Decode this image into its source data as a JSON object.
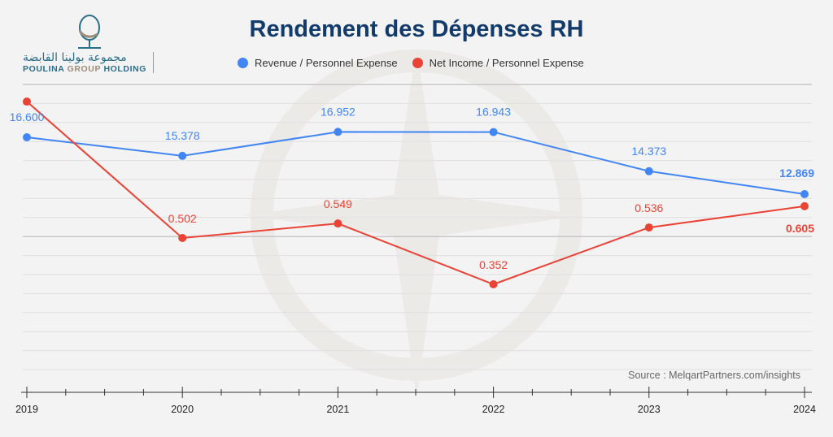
{
  "title": "Rendement des Dépenses RH",
  "logo": {
    "arabic": "مجموعة بولينا القابضة",
    "english_part1": "POULINA",
    "english_part2": "GROUP",
    "english_part3": "HOLDING"
  },
  "source": "Source : MelqartPartners.com/insights",
  "chart_data": {
    "type": "line",
    "title": "Rendement des Dépenses RH",
    "xlabel": "",
    "ylabel": "",
    "x": [
      "2019",
      "2020",
      "2021",
      "2022",
      "2023",
      "2024"
    ],
    "legend_position": "top-center",
    "grid": true,
    "series": [
      {
        "name": "Revenue / Personnel Expense",
        "color": "#4285f4",
        "axis": "left",
        "values": [
          16.6,
          15.378,
          16.952,
          16.943,
          14.373,
          12.869
        ],
        "labels": [
          "16.600",
          "15.378",
          "16.952",
          "16.943",
          "14.373",
          "12.869"
        ]
      },
      {
        "name": "Net Income / Personnel Expense",
        "color": "#ea4335",
        "axis": "right",
        "values": [
          0.944,
          0.502,
          0.549,
          0.352,
          0.536,
          0.605
        ],
        "labels": [
          null,
          "0.502",
          "0.549",
          "0.352",
          "0.536",
          "0.605"
        ]
      }
    ]
  }
}
